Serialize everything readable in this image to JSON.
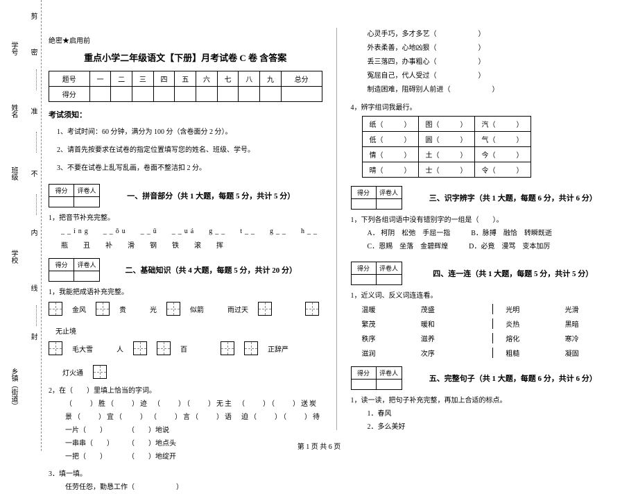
{
  "binding": {
    "labels_outer": [
      "学号",
      "姓名",
      "班级",
      "学校",
      "乡镇（街道）"
    ],
    "labels_inner": [
      "密",
      "准",
      "不",
      "内",
      "线",
      "封"
    ],
    "top_char": "剪"
  },
  "header": {
    "secret": "绝密★启用前",
    "title": "重点小学二年级语文【下册】月考试卷 C 卷 含答案"
  },
  "score_table": {
    "row1": [
      "题号",
      "一",
      "二",
      "三",
      "四",
      "五",
      "六",
      "七",
      "八",
      "九",
      "总分"
    ],
    "row2_label": "得分"
  },
  "notice": {
    "heading": "考试须知：",
    "items": [
      "1、考试时间：60 分钟，满分为 100 分（含卷面分 2 分）。",
      "2、请首先按要求在试卷的指定位置填写您的姓名、班级、学号。",
      "3、不要在试卷上乱写乱画，卷面不整洁扣 2 分。"
    ]
  },
  "scorebox_labels": {
    "c1": "得分",
    "c2": "评卷人"
  },
  "sections": {
    "s1": "一、拼音部分（共 1 大题，每题 5 分，共计 5 分）",
    "s2": "二、基础知识（共 4 大题，每题 5 分，共计 20 分）",
    "s3": "三、识字辨字（共 1 大题，每题 6 分，共计 6 分）",
    "s4": "四、连一连（共 1 大题，每题 5 分，共计 5 分）",
    "s5": "五、完整句子（共 1 大题，每题 6 分，共计 6 分）"
  },
  "q1": {
    "prompt": "1，把音节补充完整。",
    "py": [
      "__íng",
      "__ǒu",
      "__ǔ",
      "__uá",
      "g__",
      "t__",
      "g__",
      "h__"
    ],
    "hz": [
      "瓶",
      "丑",
      "补",
      "滑",
      "钢",
      "铁",
      "滚",
      "挥"
    ]
  },
  "q2": {
    "prompt": "1，我能把成语补充完整。",
    "items": [
      [
        {
          "tian": 1
        },
        "金风",
        {
          "tian": 1
        },
        "贵",
        "　　光",
        {
          "tian": 1
        },
        "似箭",
        "　　雨过天",
        {
          "tian": 1
        },
        "　　",
        {
          "tian": 1
        },
        "　无止境"
      ],
      [
        {
          "tian": 1
        },
        "毛大雪",
        "　　人",
        {
          "tian": 1
        },
        {
          "tian": 1
        },
        "百",
        "　　",
        {
          "tian": 1
        },
        {
          "tian": 1
        },
        "正辞严",
        "　　灯火通",
        {
          "tian": 1
        }
      ]
    ]
  },
  "q2b": {
    "prompt": "2，在（　　）里填上恰当的字词。",
    "lines": [
      "（　　）胜（　　）迹　（　　）（　　）无主　（　　）（　　）送炭",
      "景（　　）宜（　　）　（　　）言（　　）语　迫（　　）（　　）待",
      "一片（　　）　　　　（　　）地说",
      "一串串（　　）　　　（　　）地点头",
      "一把（　　）　　　　（　　）地绽开"
    ]
  },
  "q2c": {
    "prompt": "3．填一填。",
    "line": "任劳任怨，勤恳工作（　　　　　　）"
  },
  "right_idioms": [
    "心灵手巧，多才多艺（　　　　　　）",
    "外表柔善，心地凶狠（　　　　　　）",
    "丢三落四，办事粗心（　　　　　　）",
    "冤屈自己，代人受过（　　　　　　）",
    "制造困难，阻碍别人前进（　　　　　　）"
  ],
  "q4": {
    "prompt": "4，辨字组词我最行。",
    "rows": [
      [
        "纸（　　　）",
        "图（　　　）",
        "汽（　　　）"
      ],
      [
        "低（　　　）",
        "圆（　　　）",
        "气（　　　）"
      ],
      [
        "情（　　　）",
        "土（　　　）",
        "今（　　　）"
      ],
      [
        "晴（　　　）",
        "士（　　　）",
        "令（　　　）"
      ]
    ]
  },
  "q3_1": {
    "prompt": "1，下列各组词语中没有错别字的一组是（　　）。",
    "opts": [
      "A． 柯阴　松弛　手屈一指　　　B．脉搏　融恰　转瞬既逝",
      "C．恩赐　坐落　金碧辉煌　　　D．必竟　漫骂　变本加厉"
    ]
  },
  "q4_1": {
    "prompt": "1，近义词、反义词连连看。",
    "rows": [
      [
        "温暖",
        "茂盛",
        "光明",
        "光滑"
      ],
      [
        "繁茂",
        "暖和",
        "炎热",
        "黑暗"
      ],
      [
        "秩序",
        "滋养",
        "熔化",
        "寒冷"
      ],
      [
        "滋润",
        "次序",
        "粗糙",
        "凝固"
      ]
    ]
  },
  "q5_1": {
    "prompt": "1，读一读，把句子补充完整，再加上合适的标点。",
    "lines": [
      "1．春风",
      "2．多么美好"
    ]
  },
  "footer": "第 1 页  共 6 页"
}
